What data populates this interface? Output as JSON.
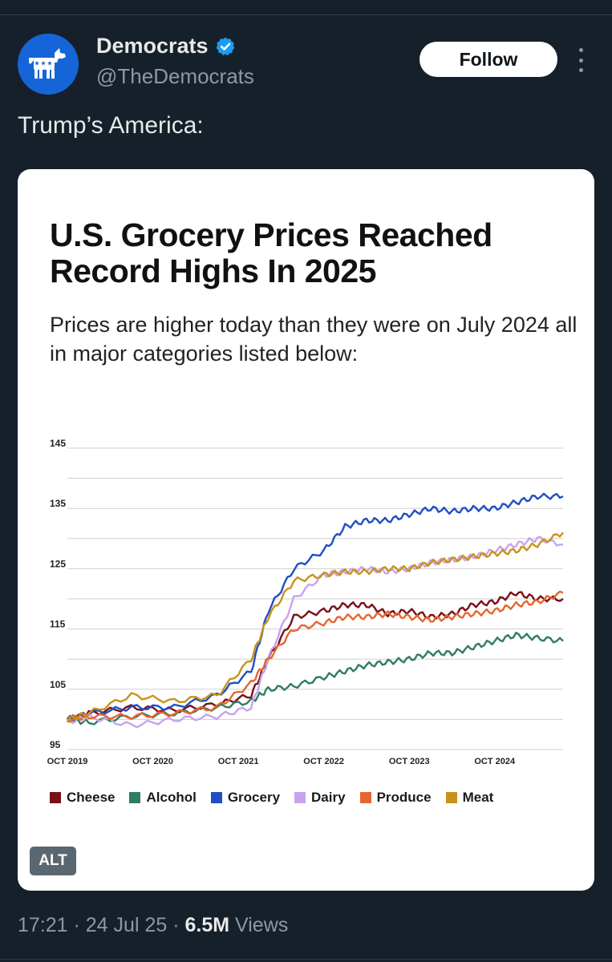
{
  "account": {
    "name": "Democrats",
    "handle": "@TheDemocrats",
    "follow_label": "Follow"
  },
  "tweet": {
    "text": "Trump’s America:",
    "alt_label": "ALT"
  },
  "footer": {
    "time": "17:21",
    "sep1": " · ",
    "date": "24 Jul 25",
    "sep2": " · ",
    "views_count": "6.5M",
    "views_label": " Views"
  },
  "colors": {
    "background": "#15202b",
    "cheese": "#7a1018",
    "alcohol": "#2f7d62",
    "grocery": "#1f4fc4",
    "dairy": "#c9a2ee",
    "produce": "#e5662f",
    "meat": "#c9921a"
  },
  "chart_data": {
    "type": "line",
    "title": "U.S. Grocery Prices Reached Record Highs In 2025",
    "subtitle": "Prices are higher today than they were on July 2024 all in major categories listed below:",
    "ylim": [
      95,
      145
    ],
    "yticks": [
      "145",
      "135",
      "125",
      "115",
      "105",
      "95"
    ],
    "xlim": [
      2019.75,
      2025.55
    ],
    "xticks": [
      {
        "label": "OCT 2019",
        "value": 2019.75
      },
      {
        "label": "OCT 2020",
        "value": 2020.75
      },
      {
        "label": "OCT 2021",
        "value": 2021.75
      },
      {
        "label": "OCT 2022",
        "value": 2022.75
      },
      {
        "label": "OCT 2023",
        "value": 2023.75
      },
      {
        "label": "OCT 2024",
        "value": 2024.75
      }
    ],
    "grid": true,
    "series": [
      {
        "name": "Cheese",
        "color": "#7a1018",
        "x": [
          2019.75,
          2020.0,
          2020.5,
          2021.0,
          2021.5,
          2021.9,
          2022.1,
          2022.4,
          2022.75,
          2023.0,
          2023.25,
          2023.5,
          2023.75,
          2024.0,
          2024.25,
          2024.5,
          2024.75,
          2025.0,
          2025.25,
          2025.55
        ],
        "values": [
          100,
          101,
          102,
          101.5,
          102.5,
          104,
          110,
          117,
          118,
          119,
          119,
          117.5,
          118,
          117,
          117.5,
          119,
          119.5,
          121,
          120,
          120
        ]
      },
      {
        "name": "Alcohol",
        "color": "#2f7d62",
        "x": [
          2019.75,
          2020.0,
          2020.5,
          2021.0,
          2021.5,
          2021.9,
          2022.1,
          2022.4,
          2022.75,
          2023.0,
          2023.25,
          2023.5,
          2023.75,
          2024.0,
          2024.25,
          2024.5,
          2024.75,
          2025.0,
          2025.25,
          2025.55
        ],
        "values": [
          100,
          99.5,
          100.5,
          101,
          102,
          103,
          105,
          105.5,
          107,
          108,
          109,
          109.5,
          110,
          111,
          111,
          112,
          113,
          114,
          113.5,
          113
        ]
      },
      {
        "name": "Grocery",
        "color": "#1f4fc4",
        "x": [
          2019.75,
          2020.0,
          2020.5,
          2021.0,
          2021.5,
          2021.9,
          2022.1,
          2022.4,
          2022.75,
          2023.0,
          2023.25,
          2023.5,
          2023.75,
          2024.0,
          2024.25,
          2024.5,
          2024.75,
          2025.0,
          2025.25,
          2025.55
        ],
        "values": [
          100,
          101,
          102,
          102,
          104,
          108,
          118,
          125,
          128,
          132,
          133,
          133,
          134,
          135,
          134.5,
          135,
          135,
          136,
          137,
          137
        ]
      },
      {
        "name": "Dairy",
        "color": "#c9a2ee",
        "x": [
          2019.75,
          2020.0,
          2020.5,
          2021.0,
          2021.5,
          2021.9,
          2022.1,
          2022.4,
          2022.75,
          2023.0,
          2023.25,
          2023.5,
          2023.75,
          2024.0,
          2024.25,
          2024.5,
          2024.75,
          2025.0,
          2025.25,
          2025.55
        ],
        "values": [
          99.5,
          100.5,
          99,
          100,
          100.5,
          102,
          110,
          120,
          124,
          124.5,
          125,
          124.5,
          125,
          126,
          126.5,
          127,
          128,
          129,
          130,
          129
        ]
      },
      {
        "name": "Produce",
        "color": "#e5662f",
        "x": [
          2019.75,
          2020.0,
          2020.5,
          2021.0,
          2021.5,
          2021.9,
          2022.1,
          2022.4,
          2022.75,
          2023.0,
          2023.25,
          2023.5,
          2023.75,
          2024.0,
          2024.25,
          2024.5,
          2024.75,
          2025.0,
          2025.25,
          2025.55
        ],
        "values": [
          100,
          100.5,
          100.5,
          101,
          102,
          106,
          110,
          115,
          116,
          117,
          117,
          117.5,
          117,
          116.5,
          117,
          117.5,
          118,
          119,
          119.5,
          121
        ]
      },
      {
        "name": "Meat",
        "color": "#c9921a",
        "x": [
          2019.75,
          2020.0,
          2020.5,
          2021.0,
          2021.5,
          2021.9,
          2022.1,
          2022.4,
          2022.75,
          2023.0,
          2023.25,
          2023.5,
          2023.75,
          2024.0,
          2024.25,
          2024.5,
          2024.75,
          2025.0,
          2025.25,
          2025.55
        ],
        "values": [
          100,
          101,
          104,
          103,
          104,
          110,
          117,
          123,
          124,
          124.5,
          124.5,
          125,
          125,
          126,
          126.5,
          127,
          127.5,
          128,
          129,
          131
        ]
      }
    ]
  }
}
